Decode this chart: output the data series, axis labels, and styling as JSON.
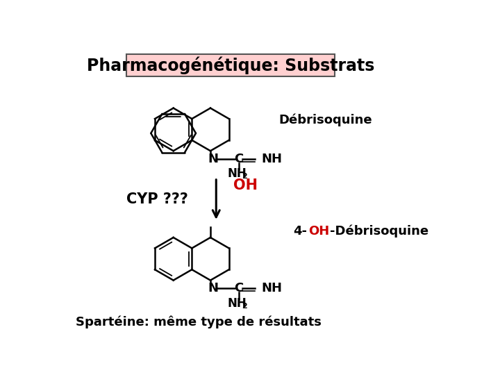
{
  "title": "Pharmacogénétique: Substrats",
  "title_fontsize": 17,
  "title_bg": "#FFD0D0",
  "title_border": "#555555",
  "label_debrisoquine": "Débrisoquine",
  "label_cyp": "CYP ???",
  "label_oh": "OH",
  "label_sparteine": "Spartéine: même type de résultats",
  "bg_color": "#FFFFFF",
  "text_color": "#000000",
  "red_color": "#CC0000",
  "arrow_color": "#000000",
  "lw": 1.8
}
